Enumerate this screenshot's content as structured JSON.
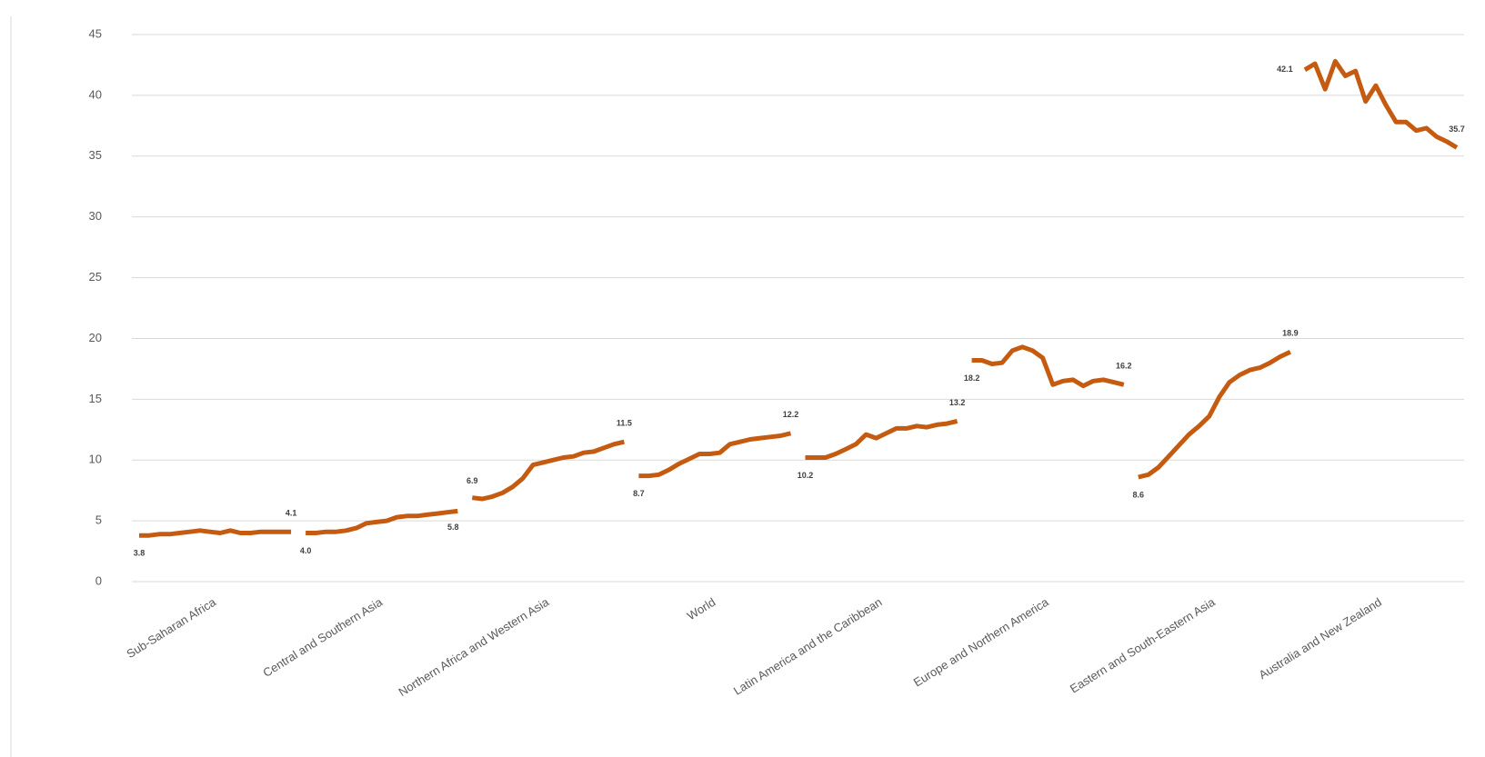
{
  "chart_data": {
    "type": "line",
    "color": "#c55a11",
    "ylim": [
      0,
      45
    ],
    "yticks": [
      0,
      5,
      10,
      15,
      20,
      25,
      30,
      35,
      40,
      45
    ],
    "grid": true,
    "categories": [
      "Sub-Saharan Africa",
      "Central and Southern Asia",
      "Northern Africa and Western Asia",
      "World",
      "Latin America and the Caribbean",
      "Europe and Northern America",
      "Eastern and South-Eastern Asia",
      "Australia and New Zealand"
    ],
    "groups": [
      {
        "values": [
          3.8,
          3.8,
          3.9,
          3.9,
          4.0,
          4.1,
          4.2,
          4.1,
          4.0,
          4.2,
          4.0,
          4.0,
          4.1,
          4.1,
          4.1,
          4.1
        ],
        "value_labels": [
          "3.8",
          null,
          null,
          null,
          null,
          null,
          null,
          null,
          null,
          null,
          null,
          null,
          null,
          null,
          null,
          "4.1"
        ]
      },
      {
        "values": [
          4.0,
          4.0,
          4.1,
          4.1,
          4.2,
          4.4,
          4.8,
          4.9,
          5.0,
          5.3,
          5.4,
          5.4,
          5.5,
          5.6,
          5.7,
          5.8
        ],
        "value_labels": [
          "4.0",
          null,
          null,
          null,
          null,
          null,
          null,
          null,
          null,
          null,
          null,
          null,
          null,
          null,
          null,
          "5.8"
        ]
      },
      {
        "values": [
          6.9,
          6.8,
          7.0,
          7.3,
          7.8,
          8.5,
          9.6,
          9.8,
          10.0,
          10.2,
          10.3,
          10.6,
          10.7,
          11.0,
          11.3,
          11.5
        ],
        "value_labels": [
          "6.9",
          null,
          null,
          null,
          null,
          null,
          null,
          null,
          null,
          null,
          null,
          null,
          null,
          null,
          null,
          "11.5"
        ]
      },
      {
        "values": [
          8.7,
          8.7,
          8.8,
          9.2,
          9.7,
          10.1,
          10.5,
          10.5,
          10.6,
          11.3,
          11.5,
          11.7,
          11.8,
          11.9,
          12.0,
          12.2
        ],
        "value_labels": [
          "8.7",
          null,
          null,
          null,
          null,
          null,
          null,
          null,
          null,
          null,
          null,
          null,
          null,
          null,
          null,
          "12.2"
        ]
      },
      {
        "values": [
          10.2,
          10.2,
          10.2,
          10.5,
          10.9,
          11.3,
          12.1,
          11.8,
          12.2,
          12.6,
          12.6,
          12.8,
          12.7,
          12.9,
          13.0,
          13.2
        ],
        "value_labels": [
          "10.2",
          null,
          null,
          null,
          null,
          null,
          null,
          null,
          null,
          null,
          null,
          null,
          null,
          null,
          null,
          "13.2"
        ]
      },
      {
        "values": [
          18.2,
          18.2,
          17.9,
          18.0,
          19.0,
          19.3,
          19.0,
          18.4,
          16.2,
          16.5,
          16.6,
          16.1,
          16.5,
          16.6,
          16.4,
          16.2
        ],
        "value_labels": [
          "18.2",
          null,
          null,
          null,
          null,
          null,
          null,
          null,
          null,
          null,
          null,
          null,
          null,
          null,
          null,
          "16.2"
        ]
      },
      {
        "values": [
          8.6,
          8.8,
          9.4,
          10.3,
          11.2,
          12.1,
          12.8,
          13.6,
          15.2,
          16.4,
          17.0,
          17.4,
          17.6,
          18.0,
          18.5,
          18.9
        ],
        "value_labels": [
          "8.6",
          null,
          null,
          null,
          null,
          null,
          null,
          null,
          null,
          null,
          null,
          null,
          null,
          null,
          null,
          "18.9"
        ]
      },
      {
        "values": [
          42.1,
          42.6,
          40.5,
          42.8,
          41.6,
          42.0,
          39.5,
          40.8,
          39.2,
          37.8,
          37.8,
          37.1,
          37.3,
          36.6,
          36.2,
          35.7
        ],
        "value_labels": [
          "42.1",
          null,
          null,
          null,
          null,
          null,
          null,
          null,
          null,
          null,
          null,
          null,
          null,
          null,
          null,
          "35.7"
        ]
      }
    ]
  }
}
